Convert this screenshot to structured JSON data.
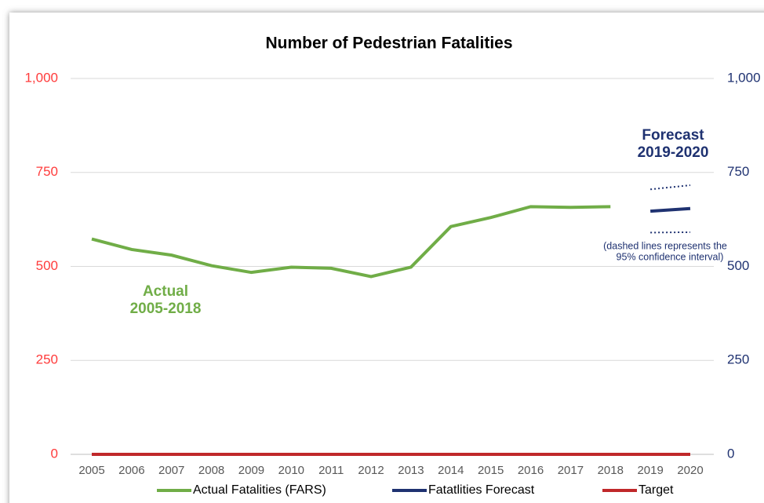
{
  "chart_data": {
    "type": "line",
    "title": "Number of Pedestrian Fatalities",
    "categories": [
      "2005",
      "2006",
      "2007",
      "2008",
      "2009",
      "2010",
      "2011",
      "2012",
      "2013",
      "2014",
      "2015",
      "2016",
      "2017",
      "2018",
      "2019",
      "2020"
    ],
    "series": [
      {
        "name": "Actual Fatalities (FARS)",
        "color": "#70ad47",
        "values": [
          573,
          545,
          530,
          502,
          484,
          498,
          495,
          473,
          498,
          606,
          630,
          659,
          657,
          659,
          null,
          null
        ]
      },
      {
        "name": "Fatatlities Forecast",
        "color": "#1f3271",
        "axis": "y2",
        "values": [
          null,
          null,
          null,
          null,
          null,
          null,
          null,
          null,
          null,
          null,
          null,
          null,
          null,
          null,
          647,
          654
        ]
      },
      {
        "name": "Target",
        "color": "#c0282a",
        "values": [
          0,
          0,
          0,
          0,
          0,
          0,
          0,
          0,
          0,
          0,
          0,
          0,
          0,
          0,
          0,
          0
        ]
      },
      {
        "color": "#1f3271",
        "dashed": true,
        "axis": "y2",
        "values": [
          null,
          null,
          null,
          null,
          null,
          null,
          null,
          null,
          null,
          null,
          null,
          null,
          null,
          null,
          705,
          716
        ]
      },
      {
        "color": "#1f3271",
        "dashed": true,
        "axis": "y2",
        "values": [
          null,
          null,
          null,
          null,
          null,
          null,
          null,
          null,
          null,
          null,
          null,
          null,
          null,
          null,
          590,
          591
        ]
      }
    ],
    "ylim": [
      0,
      1000
    ],
    "yticks": [
      0,
      250,
      500,
      750,
      {
        "value": 1000,
        "label": "1,000"
      }
    ],
    "y2lim": [
      0,
      1000
    ],
    "y2ticks": [
      0,
      250,
      500,
      750,
      {
        "value": 1000,
        "label": "1,000"
      }
    ],
    "ytick_color": "#ff3b3b",
    "y2tick_color": "#1f3271",
    "grid": true,
    "annotations": [
      {
        "lines": [
          "Actual",
          "2005-2018"
        ],
        "color": "#70ad47"
      },
      {
        "lines": [
          "Forecast",
          "2019-2020"
        ],
        "color": "#1f3271"
      },
      {
        "lines": [
          "(dashed lines represents the",
          "95% confidence interval)"
        ],
        "color": "#1f3271"
      }
    ]
  }
}
